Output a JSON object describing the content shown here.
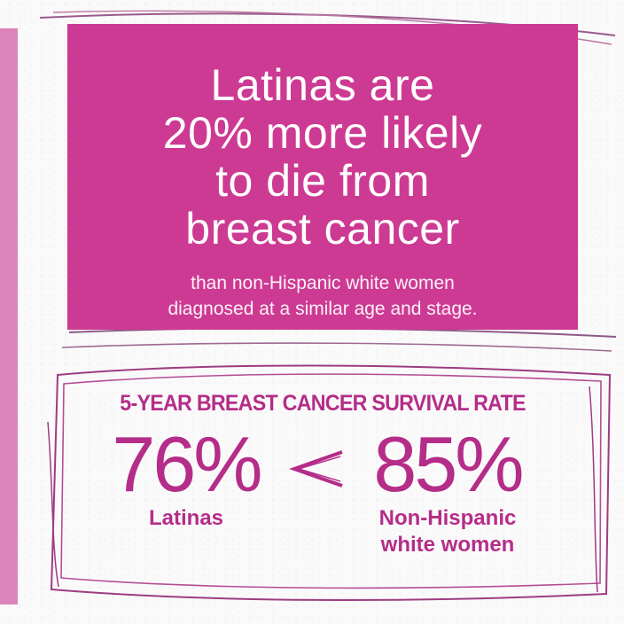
{
  "headline_card": {
    "line1": "Latinas are",
    "line2": "20% more likely",
    "line3": "to die from",
    "line4": "breast cancer",
    "sub_line1": "than non-Hispanic white women",
    "sub_line2": "diagnosed at a similar age and stage.",
    "background_color": "#cd3a93",
    "text_color": "#ffffff"
  },
  "survival_box": {
    "title": "5-YEAR BREAST CANCER SURVIVAL RATE",
    "comparison_symbol": "less-than",
    "accent_color": "#b42d88",
    "stats": [
      {
        "value": "76%",
        "label_line1": "Latinas",
        "label_line2": ""
      },
      {
        "value": "85%",
        "label_line1": "Non-Hispanic",
        "label_line2": "white women"
      }
    ]
  }
}
